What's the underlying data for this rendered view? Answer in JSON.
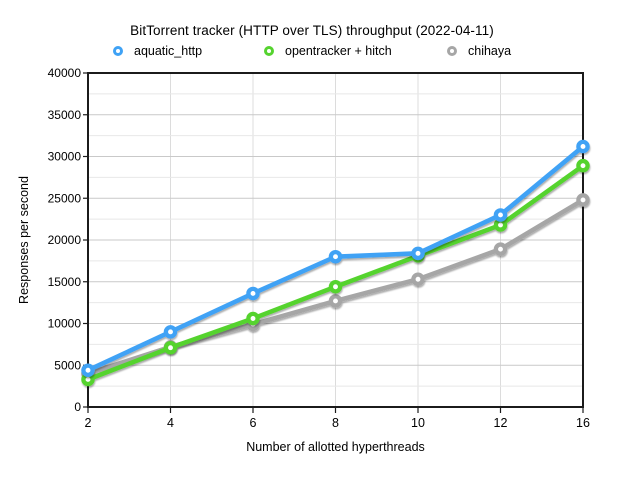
{
  "chart_data": {
    "type": "line",
    "title": "BitTorrent tracker (HTTP over TLS) throughput (2022-04-11)",
    "xlabel": "Number of allotted hyperthreads",
    "ylabel": "Responses per second",
    "categories": [
      2,
      4,
      6,
      8,
      10,
      12,
      16
    ],
    "x_tick_labels": [
      "2",
      "4",
      "6",
      "8",
      "10",
      "12",
      "16"
    ],
    "series": [
      {
        "name": "aquatic_http",
        "color": "#3FA2F5",
        "values": [
          4400,
          9000,
          13600,
          18000,
          18400,
          23000,
          31200
        ]
      },
      {
        "name": "opentracker + hitch",
        "color": "#55D32F",
        "values": [
          3300,
          7100,
          10600,
          14400,
          18100,
          21800,
          28900
        ]
      },
      {
        "name": "chihaya",
        "color": "#A6A6A6",
        "values": [
          4000,
          7200,
          9900,
          12700,
          15300,
          18900,
          24800
        ]
      }
    ],
    "ylim": [
      0,
      40000
    ],
    "y_major_step": 5000,
    "y_minor_step": 2500,
    "y_tick_labels": [
      "0",
      "5000",
      "10000",
      "15000",
      "20000",
      "25000",
      "30000",
      "35000",
      "40000"
    ],
    "grid": "major+minor horizontal, vertical at ticks",
    "legend_position": "top",
    "marker": "open-circle",
    "colors": {
      "axis_frame": "#1b1b1b",
      "grid_major": "#c9c9c9",
      "grid_minor": "#e8e8e8",
      "grid_vertical": "#dcdcdc",
      "background": "#ffffff",
      "text": "#000000"
    }
  }
}
